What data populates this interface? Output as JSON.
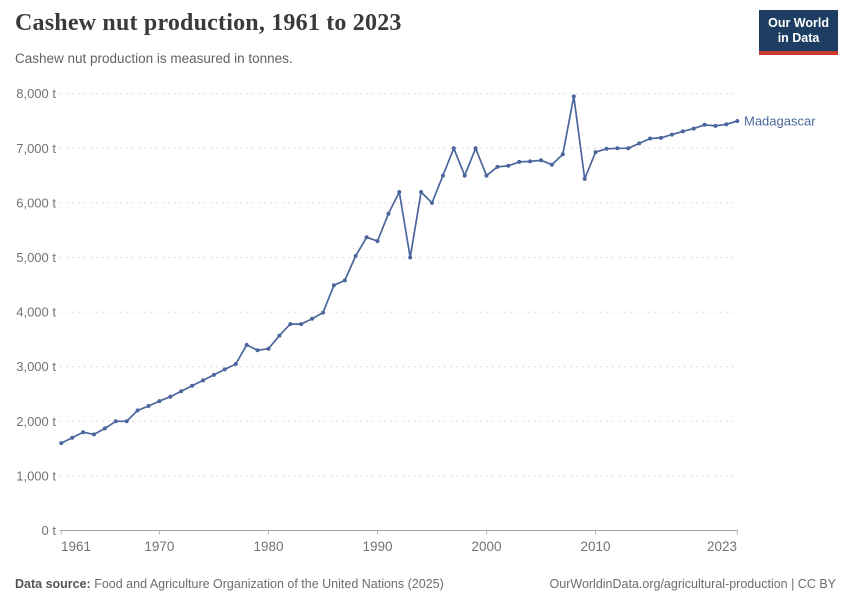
{
  "header": {
    "title": "Cashew nut production, 1961 to 2023",
    "subtitle": "Cashew nut production is measured in tonnes."
  },
  "logo": {
    "line1": "Our World",
    "line2": "in Data"
  },
  "chart_data": {
    "type": "line",
    "title": "Cashew nut production, 1961 to 2023",
    "unit": "tonnes",
    "xlabel": "",
    "ylabel": "",
    "xlim": [
      1961,
      2023
    ],
    "ylim": [
      0,
      8000
    ],
    "grid": "horizontal-dashed",
    "legend_position": "end-of-line-label",
    "yticks": [
      0,
      1000,
      2000,
      3000,
      4000,
      5000,
      6000,
      7000,
      8000
    ],
    "ytick_labels": [
      "0 t",
      "1,000 t",
      "2,000 t",
      "3,000 t",
      "4,000 t",
      "5,000 t",
      "6,000 t",
      "7,000 t",
      "8,000 t"
    ],
    "xticks": [
      1961,
      1970,
      1980,
      1990,
      2000,
      2010,
      2023
    ],
    "series": [
      {
        "name": "Madagascar",
        "color": "#4b669d",
        "years": [
          1961,
          1962,
          1963,
          1964,
          1965,
          1966,
          1967,
          1968,
          1969,
          1970,
          1971,
          1972,
          1973,
          1974,
          1975,
          1976,
          1977,
          1978,
          1979,
          1980,
          1981,
          1982,
          1983,
          1984,
          1985,
          1986,
          1987,
          1988,
          1989,
          1990,
          1991,
          1992,
          1993,
          1994,
          1995,
          1996,
          1997,
          1998,
          1999,
          2000,
          2001,
          2002,
          2003,
          2004,
          2005,
          2006,
          2007,
          2008,
          2009,
          2010,
          2011,
          2012,
          2013,
          2014,
          2015,
          2016,
          2017,
          2018,
          2019,
          2020,
          2021,
          2022,
          2023
        ],
        "values": [
          1600,
          1700,
          1800,
          1760,
          1870,
          2000,
          2000,
          2200,
          2280,
          2370,
          2450,
          2550,
          2650,
          2750,
          2850,
          2950,
          3050,
          3400,
          3300,
          3330,
          3570,
          3780,
          3780,
          3880,
          3990,
          4490,
          4580,
          5030,
          5370,
          5300,
          5800,
          6200,
          5000,
          6200,
          6000,
          6500,
          7000,
          6500,
          7000,
          6500,
          6660,
          6680,
          6750,
          6760,
          6780,
          6700,
          6890,
          7950,
          6440,
          6930,
          6990,
          7000,
          7000,
          7090,
          7180,
          7190,
          7250,
          7310,
          7360,
          7430,
          7410,
          7440,
          7500
        ]
      }
    ],
    "colors": {
      "line": "#4b669d",
      "grid": "#dcdcdc",
      "axis": "#a5a5a5",
      "tick_label": "#737373"
    }
  },
  "footer": {
    "datasource_label": "Data source:",
    "datasource": "Food and Agriculture Organization of the United Nations (2025)",
    "link": "OurWorldinData.org/agricultural-production | CC BY"
  }
}
